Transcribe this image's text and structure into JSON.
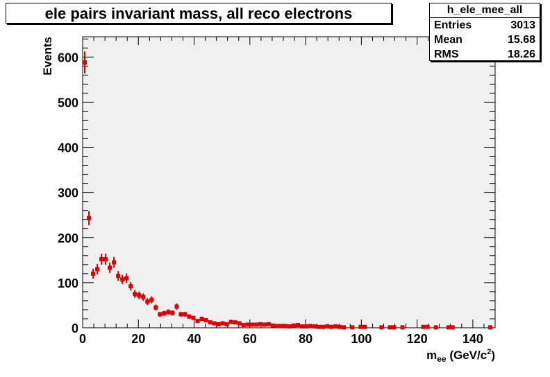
{
  "chart_data": {
    "type": "scatter",
    "title": "ele pairs invariant mass, all reco electrons",
    "xlabel_main": "m",
    "xlabel_sub": "ee",
    "xlabel_unit": " (GeV/c",
    "xlabel_sup": "2",
    "xlabel_close": ")",
    "ylabel": "Events",
    "xlim": [
      0,
      148
    ],
    "ylim": [
      0,
      645
    ],
    "x_ticks": [
      "0",
      "20",
      "40",
      "60",
      "80",
      "100",
      "120",
      "140"
    ],
    "x_tick_values": [
      0,
      20,
      40,
      60,
      80,
      100,
      120,
      140
    ],
    "y_ticks": [
      "0",
      "100",
      "200",
      "300",
      "400",
      "500",
      "600"
    ],
    "y_tick_values": [
      0,
      100,
      200,
      300,
      400,
      500,
      600
    ],
    "bin_width": 1.5,
    "grid": false,
    "series": [
      {
        "name": "h_ele_mee_all",
        "color": "#e00000",
        "x": [
          0.75,
          2.25,
          3.75,
          5.25,
          6.75,
          8.25,
          9.75,
          11.25,
          12.75,
          14.25,
          15.75,
          17.25,
          18.75,
          20.25,
          21.75,
          23.25,
          24.75,
          26.25,
          27.75,
          29.25,
          30.75,
          32.25,
          33.75,
          35.25,
          36.75,
          38.25,
          39.75,
          41.25,
          42.75,
          44.25,
          45.75,
          47.25,
          48.75,
          50.25,
          51.75,
          53.25,
          54.75,
          56.25,
          57.75,
          59.25,
          60.75,
          62.25,
          63.75,
          65.25,
          66.75,
          68.25,
          69.75,
          71.25,
          72.75,
          74.25,
          75.75,
          77.25,
          78.75,
          80.25,
          81.75,
          83.25,
          84.75,
          86.25,
          87.75,
          89.25,
          90.75,
          92.25,
          93.75,
          96.75,
          99.75,
          101.25,
          107.25,
          110.25,
          111.75,
          114.75,
          122.25,
          123.75,
          126.75,
          131.25,
          132.75,
          146.25
        ],
        "values": [
          588,
          243,
          120,
          130,
          152,
          152,
          133,
          145,
          115,
          107,
          110,
          92,
          75,
          72,
          68,
          58,
          62,
          45,
          30,
          32,
          35,
          33,
          47,
          30,
          30,
          25,
          22,
          15,
          20,
          17,
          12,
          10,
          8,
          10,
          8,
          13,
          12,
          10,
          6,
          7,
          7,
          7,
          8,
          7,
          8,
          5,
          4,
          4,
          4,
          3,
          5,
          6,
          3,
          3,
          4,
          3,
          2,
          2,
          3,
          2,
          3,
          2,
          1,
          1,
          2,
          2,
          1,
          1,
          1,
          1,
          2,
          2,
          1,
          1,
          1,
          1
        ]
      }
    ]
  },
  "stats": {
    "name": "h_ele_mee_all",
    "entries_label": "Entries",
    "entries_value": "3013",
    "mean_label": "Mean",
    "mean_value": "15.68",
    "rms_label": "RMS",
    "rms_value": "18.26"
  },
  "colors": {
    "plot_background": "#f0f0f0",
    "marker": "#e00000"
  }
}
